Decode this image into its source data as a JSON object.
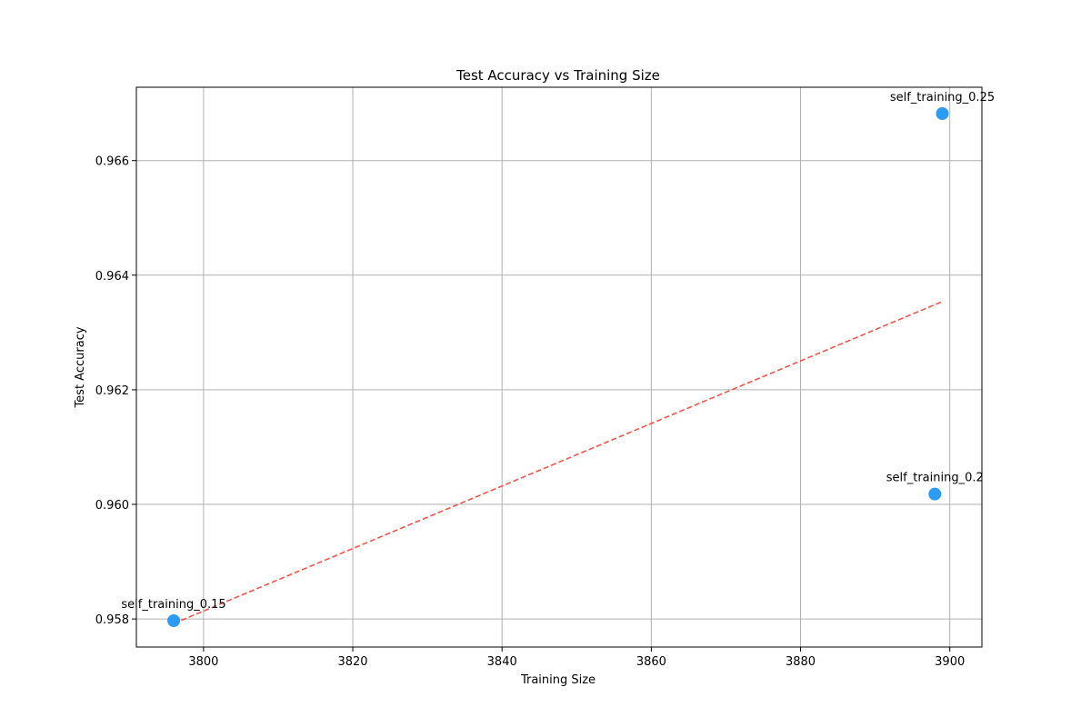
{
  "chart_data": {
    "type": "scatter",
    "title": "Test Accuracy vs Training Size",
    "xlabel": "Training Size",
    "ylabel": "Test Accuracy",
    "xlim": [
      3791,
      3904.3
    ],
    "ylim": [
      0.95751,
      0.96728
    ],
    "xticks": [
      3800,
      3820,
      3840,
      3860,
      3880,
      3900
    ],
    "xtick_labels": [
      "3800",
      "3820",
      "3840",
      "3860",
      "3880",
      "3900"
    ],
    "yticks": [
      0.958,
      0.96,
      0.962,
      0.964,
      0.966
    ],
    "ytick_labels": [
      "0.958",
      "0.960",
      "0.962",
      "0.964",
      "0.966"
    ],
    "grid": true,
    "point_color": "#2196f3",
    "trend_color": "#f44336",
    "points": [
      {
        "label": "self_training_0.15",
        "x": 3796,
        "y": 0.95797
      },
      {
        "label": "self_training_0.2",
        "x": 3898,
        "y": 0.96018
      },
      {
        "label": "self_training_0.25",
        "x": 3899,
        "y": 0.96682
      }
    ],
    "trendline": {
      "style": "dashed",
      "from": {
        "x": 3796,
        "y": 0.95792
      },
      "to": {
        "x": 3899,
        "y": 0.96354
      }
    }
  }
}
